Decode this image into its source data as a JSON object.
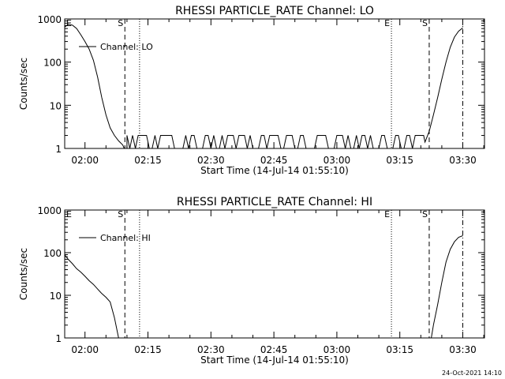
{
  "timestamp": "24-Oct-2021 14:10",
  "chart_data": [
    {
      "type": "line",
      "title": "RHESSI PARTICLE_RATE Channel: LO",
      "xlabel": "Start Time (14-Jul-14 01:55:10)",
      "ylabel": "Counts/sec",
      "x_unit": "UT time, 14-Jul-14",
      "xlim": [
        "01:55:10",
        "03:35:10"
      ],
      "ylim": [
        1,
        1000
      ],
      "y_scale": "log",
      "grid": false,
      "legend_position": "top-left",
      "xticks": [
        "02:00",
        "02:15",
        "02:30",
        "02:45",
        "03:00",
        "03:15",
        "03:30"
      ],
      "yticks": [
        "1",
        "10",
        "100",
        "1000"
      ],
      "series": [
        {
          "name": "Channel: LO",
          "x": [
            "01:55:10",
            "01:56:00",
            "01:57:00",
            "01:58:00",
            "01:59:00",
            "02:00:00",
            "02:01:00",
            "02:02:00",
            "02:03:00",
            "02:04:00",
            "02:05:00",
            "02:06:00",
            "02:07:00",
            "02:08:00",
            "02:09:00",
            "02:09:20",
            "02:10:00",
            "03:20:00",
            "03:21:00",
            "03:22:00",
            "03:23:00",
            "03:24:00",
            "03:25:00",
            "03:26:00",
            "03:27:00",
            "03:28:00",
            "03:29:00",
            "03:30:00"
          ],
          "y": [
            650,
            750,
            720,
            600,
            430,
            300,
            200,
            110,
            45,
            15,
            6,
            3,
            2,
            1.5,
            1.2,
            1,
            1,
            1,
            1.4,
            2.5,
            6,
            15,
            40,
            100,
            220,
            380,
            520,
            620
          ],
          "noise_floor": {
            "from": "02:10:00",
            "to": "03:21:00",
            "low": 1,
            "high": 2
          }
        }
      ],
      "markers": [
        {
          "label": "S",
          "style": "dashed",
          "x": "02:09:30"
        },
        {
          "label": "",
          "style": "dotted",
          "x": "02:13:00"
        },
        {
          "label": "E",
          "style": "dotted",
          "x": "03:13:00"
        },
        {
          "label": "S",
          "style": "dashed",
          "x": "03:22:00"
        },
        {
          "label": "",
          "style": "dashdot",
          "x": "03:30:00"
        }
      ],
      "start_marker": "E"
    },
    {
      "type": "line",
      "title": "RHESSI PARTICLE_RATE Channel: HI",
      "xlabel": "Start Time (14-Jul-14 01:55:10)",
      "ylabel": "Counts/sec",
      "x_unit": "UT time, 14-Jul-14",
      "xlim": [
        "01:55:10",
        "03:35:10"
      ],
      "ylim": [
        1,
        1000
      ],
      "y_scale": "log",
      "grid": false,
      "legend_position": "top-left",
      "xticks": [
        "02:00",
        "02:15",
        "02:30",
        "02:45",
        "03:00",
        "03:15",
        "03:30"
      ],
      "yticks": [
        "1",
        "10",
        "100",
        "1000"
      ],
      "series": [
        {
          "name": "Channel: HI",
          "x": [
            "01:55:10",
            "01:56:00",
            "01:57:00",
            "01:58:00",
            "01:59:00",
            "02:00:00",
            "02:01:00",
            "02:02:00",
            "02:03:00",
            "02:04:00",
            "02:05:00",
            "02:06:00",
            "02:07:00",
            "02:08:00",
            "03:22:30",
            "03:23:00",
            "03:24:00",
            "03:25:00",
            "03:26:00",
            "03:27:00",
            "03:28:00",
            "03:29:00",
            "03:30:00"
          ],
          "y": [
            90,
            70,
            55,
            42,
            35,
            28,
            22,
            18,
            14,
            11,
            9,
            7,
            3,
            1,
            1,
            2,
            6,
            20,
            60,
            120,
            180,
            230,
            250
          ]
        }
      ],
      "markers": [
        {
          "label": "S",
          "style": "dashed",
          "x": "02:09:30"
        },
        {
          "label": "",
          "style": "dotted",
          "x": "02:13:00"
        },
        {
          "label": "E",
          "style": "dotted",
          "x": "03:13:00"
        },
        {
          "label": "S",
          "style": "dashed",
          "x": "03:22:00"
        },
        {
          "label": "",
          "style": "dashdot",
          "x": "03:30:00"
        }
      ],
      "start_marker": "E"
    }
  ]
}
